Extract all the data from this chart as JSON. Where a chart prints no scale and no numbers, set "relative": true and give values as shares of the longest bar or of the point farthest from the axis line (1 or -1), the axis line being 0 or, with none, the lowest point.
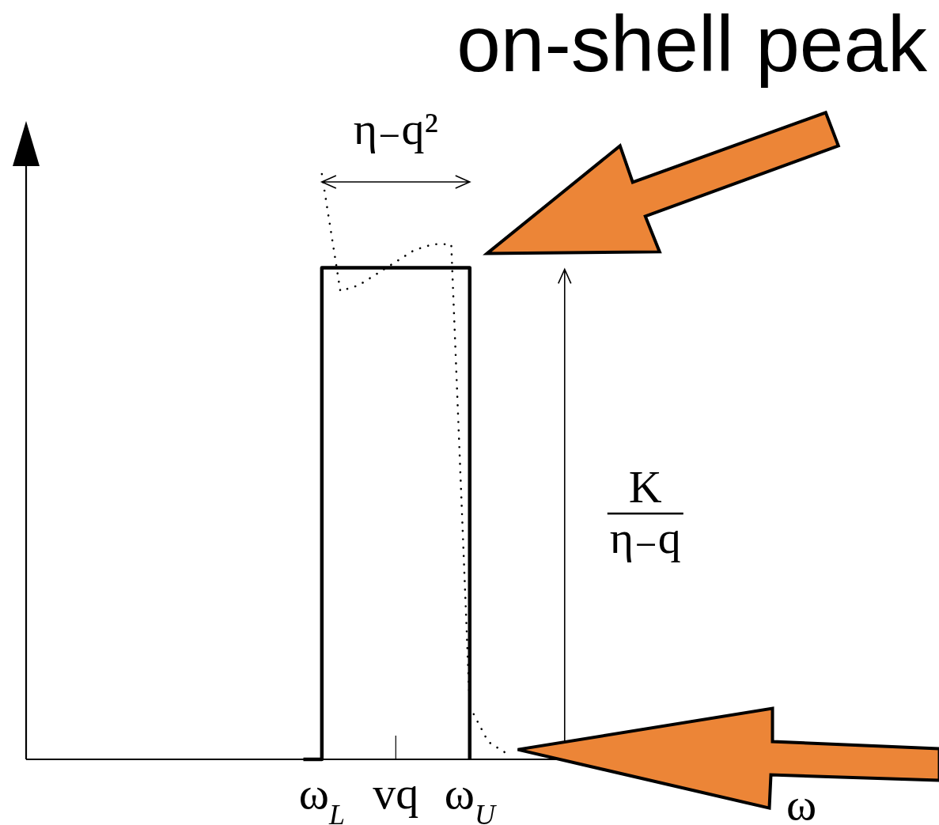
{
  "chart_data": {
    "type": "line",
    "title": "on-shell peak",
    "xlabel": "ω",
    "relative": true,
    "categories": [
      null,
      null,
      null,
      null,
      null,
      null,
      null,
      null,
      null,
      null,
      null,
      null,
      null,
      null,
      null,
      null,
      "ω$_{L}$",
      null,
      null,
      null,
      "vq",
      null,
      null,
      null,
      "ω$_{U}$",
      null,
      null,
      null,
      null,
      null,
      null,
      null,
      null,
      null,
      null,
      null,
      null,
      null,
      null,
      null,
      null,
      null
    ],
    "series": [
      {
        "type": "step",
        "color": "#000000",
        "line_style": "solid",
        "values": [
          null,
          null,
          null,
          null,
          null,
          null,
          null,
          null,
          null,
          null,
          null,
          null,
          null,
          null,
          null,
          0,
          0.84,
          0.84,
          0.84,
          0.84,
          0.84,
          0.84,
          0.84,
          0.84,
          0,
          null,
          null,
          null,
          null,
          null,
          null,
          null,
          null,
          null,
          null,
          null,
          null,
          null,
          null,
          null,
          null,
          null
        ]
      },
      {
        "type": "line",
        "color": "#000000",
        "line_style": "dotted",
        "values": [
          null,
          null,
          null,
          null,
          null,
          null,
          null,
          null,
          null,
          null,
          null,
          null,
          null,
          null,
          null,
          null,
          1,
          0.8,
          0.81,
          0.83,
          0.85,
          0.87,
          0.88,
          0.88,
          0.09,
          0.03,
          0.01,
          null,
          null,
          null,
          null,
          null,
          null,
          null,
          null,
          null,
          null,
          null,
          null,
          null,
          null,
          null
        ]
      }
    ],
    "annotations": [
      "η₋q²",
      "K",
      "η₋q"
    ]
  }
}
